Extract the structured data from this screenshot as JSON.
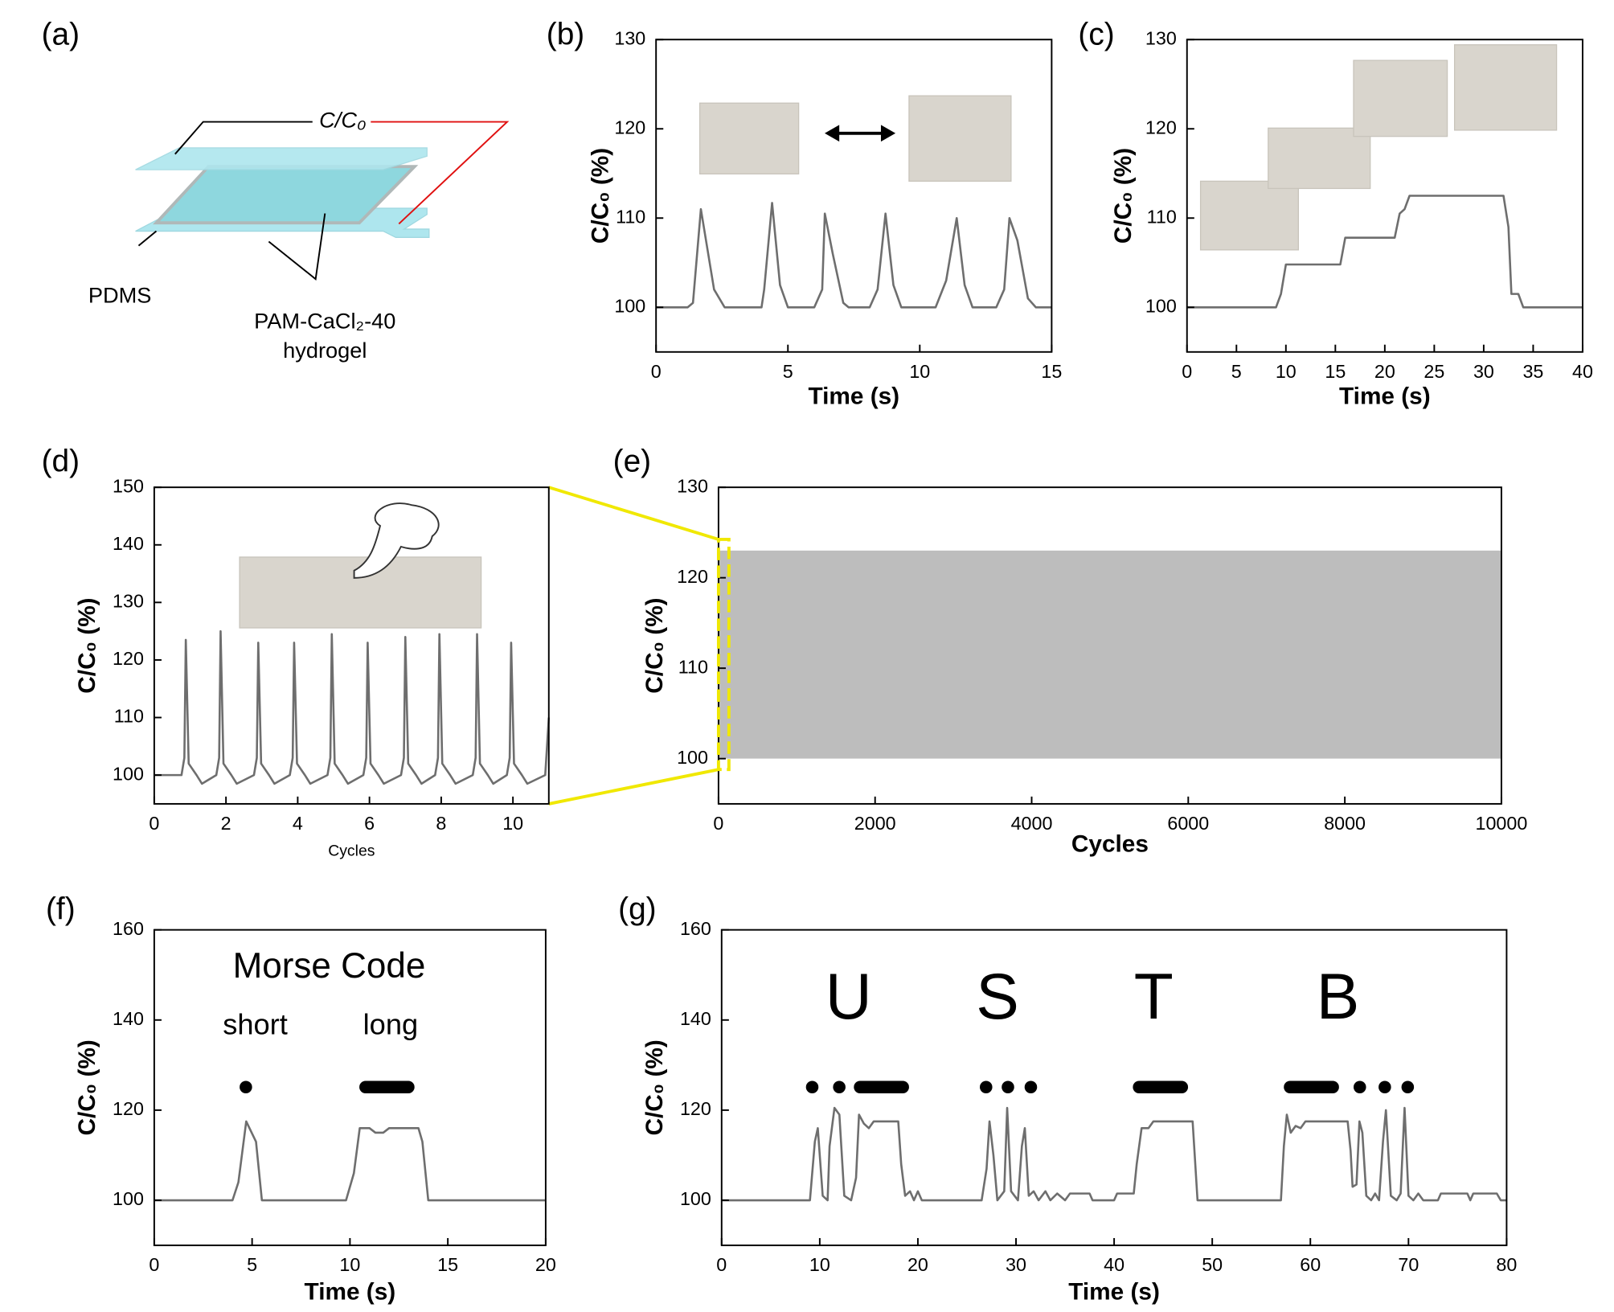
{
  "diagram": {
    "panel_label": "(a)",
    "labels": [
      "C/C₀",
      "PDMS",
      "PAM-CaCl₂-40",
      "hydrogel"
    ]
  },
  "chart_data": [
    {
      "type": "line",
      "panel_label": "(b)",
      "x_label": "Time (s)",
      "y_label": "C/C₀ (%)",
      "color": "#6e6e6e",
      "xlim": [
        0,
        15
      ],
      "ylim": [
        95,
        130
      ],
      "xticks": [
        0,
        5,
        10,
        15
      ],
      "yticks": [
        100,
        110,
        120,
        130
      ],
      "x": [
        0,
        1.2,
        1.4,
        1.7,
        2.2,
        2.6,
        4.0,
        4.1,
        4.4,
        4.7,
        5.0,
        6.0,
        6.3,
        6.4,
        6.7,
        7.1,
        7.3,
        8.1,
        8.4,
        8.7,
        9.0,
        9.3,
        10.6,
        11.0,
        11.4,
        11.7,
        12.0,
        12.9,
        13.2,
        13.4,
        13.7,
        14.1,
        14.4,
        15
      ],
      "values": [
        100,
        100,
        100.5,
        111,
        102,
        100,
        100,
        102,
        111.7,
        102.5,
        100,
        100,
        102,
        110.5,
        106,
        100.5,
        100,
        100,
        102,
        110.5,
        102.5,
        100,
        100,
        103,
        110,
        102.5,
        100,
        100,
        102,
        110,
        107.5,
        101,
        100,
        100
      ]
    },
    {
      "type": "line",
      "panel_label": "(c)",
      "x_label": "Time (s)",
      "y_label": "C/C₀ (%)",
      "color": "#6e6e6e",
      "xlim": [
        0,
        40
      ],
      "ylim": [
        95,
        130
      ],
      "xticks": [
        0,
        5,
        10,
        15,
        20,
        25,
        30,
        35,
        40
      ],
      "yticks": [
        100,
        110,
        120,
        130
      ],
      "x": [
        0,
        9,
        9.5,
        10,
        15.5,
        16,
        21,
        21.5,
        22,
        22.5,
        32,
        32.5,
        32.8,
        33.5,
        34,
        40
      ],
      "values": [
        100,
        100,
        101.5,
        104.8,
        104.8,
        107.8,
        107.8,
        110.5,
        111,
        112.5,
        112.5,
        109,
        101.5,
        101.5,
        100,
        100
      ]
    },
    {
      "type": "line",
      "panel_label": "(d)",
      "x_label": "Cycles",
      "y_label": "C/C₀ (%)",
      "color": "#6e6e6e",
      "xlim": [
        0,
        11
      ],
      "ylim": [
        95,
        150
      ],
      "xticks": [
        0,
        2,
        4,
        6,
        8,
        10
      ],
      "yticks": [
        100,
        110,
        120,
        130,
        140,
        150
      ],
      "x": [
        0,
        0.76,
        0.84,
        0.88,
        0.96,
        1.18,
        1.33,
        1.73,
        1.81,
        1.85,
        1.93,
        2.15,
        2.3,
        2.78,
        2.86,
        2.9,
        2.98,
        3.2,
        3.35,
        3.78,
        3.86,
        3.9,
        3.98,
        4.2,
        4.35,
        4.83,
        4.91,
        4.95,
        5.03,
        5.25,
        5.4,
        5.83,
        5.91,
        5.95,
        6.03,
        6.25,
        6.4,
        6.88,
        6.96,
        7.0,
        7.08,
        7.3,
        7.45,
        7.83,
        7.91,
        7.95,
        8.03,
        8.25,
        8.4,
        8.88,
        8.96,
        9.0,
        9.08,
        9.3,
        9.45,
        9.83,
        9.91,
        9.95,
        10.03,
        10.25,
        10.4,
        10.9,
        11
      ],
      "values": [
        100,
        100,
        103,
        123.5,
        102,
        100,
        98.5,
        100,
        103,
        125,
        102,
        100,
        98.5,
        100,
        103,
        123,
        102,
        100,
        98.5,
        100,
        103,
        123,
        102,
        100,
        98.5,
        100,
        103,
        124.5,
        102,
        100,
        98.5,
        100,
        103,
        123,
        102,
        100,
        98.5,
        100,
        103,
        124,
        102,
        100,
        98.5,
        100,
        103,
        124.5,
        102,
        100,
        98.5,
        100,
        103,
        124.5,
        102,
        100,
        98.5,
        100,
        103,
        123,
        102,
        100,
        98.5,
        100,
        110
      ]
    },
    {
      "type": "band",
      "panel_label": "(e)",
      "x_label": "Cycles",
      "y_label": "C/C₀ (%)",
      "color": "#bdbdbd",
      "xlim": [
        0,
        10000
      ],
      "ylim": [
        95,
        130
      ],
      "xticks": [
        0,
        2000,
        4000,
        6000,
        8000,
        10000
      ],
      "yticks": [
        100,
        110,
        120,
        130
      ],
      "x": [
        0,
        10000
      ],
      "lower": [
        100,
        100
      ],
      "upper": [
        123,
        123
      ]
    },
    {
      "type": "line",
      "panel_label": "(f)",
      "x_label": "Time (s)",
      "y_label": "C/C₀ (%)",
      "color": "#6e6e6e",
      "xlim": [
        0,
        20
      ],
      "ylim": [
        90,
        160
      ],
      "xticks": [
        0,
        5,
        10,
        15,
        20
      ],
      "yticks": [
        100,
        120,
        140,
        160
      ],
      "annotations": [
        "Morse Code",
        "short",
        "long"
      ],
      "x": [
        0,
        4,
        4.3,
        4.7,
        5.2,
        5.5,
        9.8,
        10.2,
        10.5,
        11,
        11.3,
        11.7,
        12,
        13.5,
        13.7,
        14,
        20
      ],
      "values": [
        100,
        100,
        104,
        117.5,
        113,
        100,
        100,
        106,
        116,
        116,
        115,
        115,
        116,
        116,
        113,
        100,
        100
      ]
    },
    {
      "type": "line",
      "panel_label": "(g)",
      "x_label": "Time (s)",
      "y_label": "C/C₀ (%)",
      "color": "#6e6e6e",
      "xlim": [
        0,
        80
      ],
      "ylim": [
        90,
        160
      ],
      "xticks": [
        0,
        10,
        20,
        30,
        40,
        50,
        60,
        70,
        80
      ],
      "yticks": [
        100,
        120,
        140,
        160
      ],
      "annotations": [
        "U",
        "S",
        "T",
        "B"
      ],
      "x": [
        0,
        9,
        9.5,
        9.8,
        10.3,
        10.8,
        11,
        11.5,
        12,
        12.5,
        13.2,
        13.7,
        14,
        14.5,
        15,
        15.5,
        18,
        18.3,
        18.7,
        19.2,
        19.6,
        20,
        20.4,
        26.5,
        27,
        27.3,
        27.7,
        28.1,
        28.8,
        29.1,
        29.5,
        30.2,
        30.6,
        30.9,
        31.3,
        31.8,
        32.3,
        33,
        33.5,
        34.2,
        35,
        35.5,
        37.5,
        37.8,
        40,
        40.3,
        42,
        42.3,
        42.8,
        43.5,
        44,
        48,
        48.5,
        57,
        57.3,
        57.6,
        58,
        58.5,
        59,
        59.5,
        63.8,
        64.1,
        64.3,
        64.7,
        65,
        65.3,
        65.7,
        66.2,
        66.6,
        67,
        67.4,
        67.7,
        68.2,
        68.8,
        69.2,
        69.6,
        70,
        70.5,
        71,
        71.5,
        73,
        73.3,
        76,
        76.3,
        76.6,
        79,
        79.4,
        80
      ],
      "values": [
        100,
        100,
        113,
        116,
        101,
        100,
        112,
        120.5,
        119,
        101,
        100,
        105,
        119,
        117,
        116,
        117.5,
        117.5,
        108,
        101,
        102,
        100,
        102,
        100,
        100,
        107,
        117.5,
        110,
        100,
        102,
        120.5,
        102,
        100,
        112,
        116,
        101,
        102,
        100,
        102,
        100,
        101.5,
        100,
        101.5,
        101.5,
        100,
        100,
        101.5,
        101.5,
        108,
        116,
        116,
        117.5,
        117.5,
        100,
        100,
        112,
        119,
        115,
        116.5,
        116,
        117.5,
        117.5,
        111,
        103,
        103.5,
        117.5,
        115,
        101,
        100,
        101.5,
        100,
        113,
        120,
        101,
        100,
        101.5,
        120.5,
        101,
        100,
        101.5,
        100,
        100,
        101.5,
        101.5,
        100,
        101.5,
        101.5,
        100,
        100
      ]
    }
  ]
}
